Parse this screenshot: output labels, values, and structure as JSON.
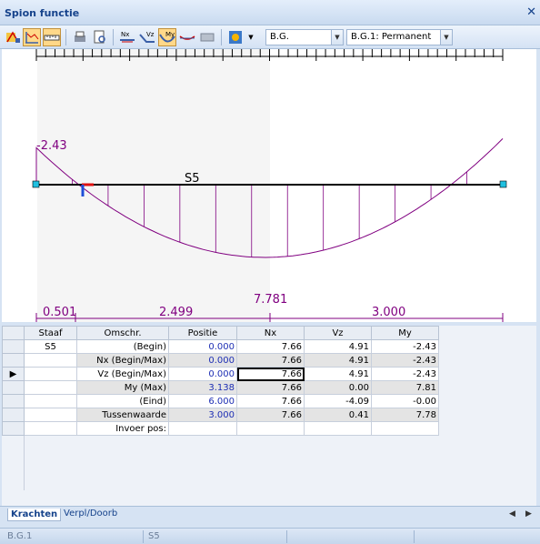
{
  "window": {
    "title": "Spion functie",
    "close": "✕"
  },
  "toolbar": {
    "combo1": "B.G.",
    "combo2": "B.G.1: Permanent",
    "icons": [
      "member-select-icon",
      "diagram-icon",
      "ruler-icon",
      "print-icon",
      "print-preview-icon",
      "nx-icon",
      "vz-icon",
      "my-icon",
      "deflection-icon",
      "section-icon",
      "settings-icon"
    ]
  },
  "diagram": {
    "member_label": "S5",
    "left_value": "-2.43",
    "max_value": "7.781",
    "dims": [
      "0.501",
      "2.499",
      "3.000"
    ],
    "curve_color": "#800080",
    "beam_color": "#000000"
  },
  "grid": {
    "headers": [
      "Staaf",
      "Omschr.",
      "Positie",
      "Nx",
      "Vz",
      "My"
    ],
    "member": "S5",
    "rows": [
      {
        "omschr": "(Begin)",
        "positie": "0.000",
        "nx": "7.66",
        "vz": "4.91",
        "my": "-2.43"
      },
      {
        "omschr": "Nx (Begin/Max)",
        "positie": "0.000",
        "nx": "7.66",
        "vz": "4.91",
        "my": "-2.43"
      },
      {
        "omschr": "Vz (Begin/Max)",
        "positie": "0.000",
        "nx": "7.66",
        "vz": "4.91",
        "my": "-2.43"
      },
      {
        "omschr": "My (Max)",
        "positie": "3.138",
        "nx": "7.66",
        "vz": "0.00",
        "my": "7.81"
      },
      {
        "omschr": "(Eind)",
        "positie": "6.000",
        "nx": "7.66",
        "vz": "-4.09",
        "my": "-0.00"
      },
      {
        "omschr": "Tussenwaarde",
        "positie": "3.000",
        "nx": "7.66",
        "vz": "0.41",
        "my": "7.78"
      },
      {
        "omschr": "Invoer pos:",
        "positie": "",
        "nx": "",
        "vz": "",
        "my": ""
      }
    ]
  },
  "tabs": [
    "Krachten",
    "Verpl/Doorb"
  ],
  "status": [
    "B.G.1",
    "S5"
  ]
}
